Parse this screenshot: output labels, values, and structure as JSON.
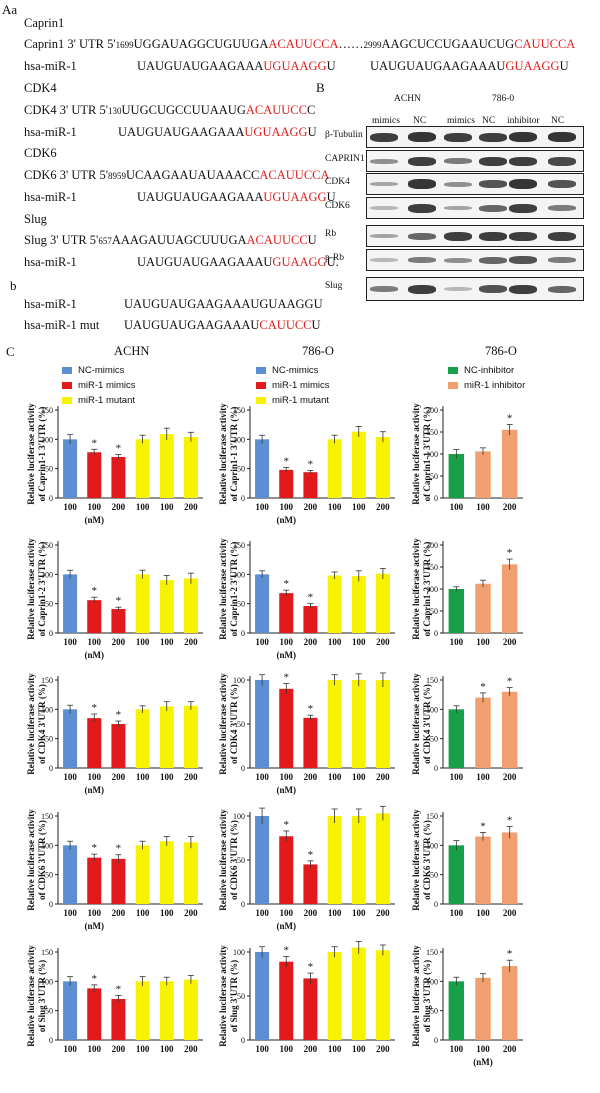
{
  "panel_A": {
    "label": "Aa",
    "caprin1": {
      "header": "Caprin1",
      "utr_prefix": "Caprin1   3' UTR 5'",
      "pos1": "1699",
      "seq1_black": "UGGAUAGGCUGUUGA",
      "seq1_red": "ACAUUCCA",
      "dots": "……",
      "pos2": "2999",
      "seq2_black": "AAGCUCCUGAAUCUG",
      "seq2_red": "CAUUCCA",
      "mir_label": "hsa-miR-1",
      "mir1_black": "UAUGUAUGAAGAAA",
      "mir1_red": "UGUAAGG",
      "mir1_tail": "U",
      "mir2_black": "UAUGUAUGAAGAAAU",
      "mir2_red": "GUAAGG",
      "mir2_tail": "U"
    },
    "cdk4": {
      "header": "CDK4",
      "utr_prefix": "CDK4  3' UTR 5'",
      "pos": "130",
      "seq_black": "UUGCUGCCUUAAUG",
      "seq_red": "ACAUUCC",
      "seq_tail": "C",
      "mir_label": "hsa-miR-1",
      "mir_black": "UAUGUAUGAAGAAA",
      "mir_red": "UGUAAGG",
      "mir_tail": "U"
    },
    "cdk6": {
      "header": "CDK6",
      "utr_prefix": "CDK6 3' UTR 5'",
      "pos": "8959",
      "seq_black": "UCAAGAAUAUAAACC",
      "seq_red": "ACAUUCCA",
      "mir_label": "hsa-miR-1",
      "mir_black": "UAUGUAUGAAGAAA",
      "mir_red": "UGUAAGG",
      "mir_tail": "U"
    },
    "slug": {
      "header": "Slug",
      "utr_prefix": "Slug   3' UTR 5'",
      "pos": "657",
      "seq_black": "AAAGAUUAGCUUUGA",
      "seq_red": "ACAUUCC",
      "seq_tail": "U",
      "mir_label": "hsa-miR-1",
      "mir_black": "UAUGUAUGAAGAAAU",
      "mir_red": "GUAAGG",
      "mir_tail": "U."
    }
  },
  "panel_b": {
    "label": "b",
    "wt_label": "hsa-miR-1",
    "wt_seq": "UAUGUAUGAAGAAAUGUAAGGU",
    "mut_label": "hsa-miR-1 mut",
    "mut_black": "UAUGUAUGAAGAAAU",
    "mut_red": "CAUUCC",
    "mut_tail": "U"
  },
  "panel_B": {
    "label": "B",
    "cell_line_1": "ACHN",
    "cell_line_2": "786-0",
    "lanes": [
      "mimics",
      "NC",
      "mimics",
      "NC",
      "inhibitor",
      "NC"
    ],
    "blots": [
      "β-Tubulin",
      "CAPRIN1",
      "CDK4",
      "CDK6",
      "Rb",
      "p-Rb",
      "Slug"
    ]
  },
  "panel_C": {
    "label": "C",
    "column_titles": [
      "ACHN",
      "786-O",
      "786-O"
    ],
    "legend_mimics": [
      "NC-mimics",
      "miR-1 mimics",
      "miR-1 mutant"
    ],
    "legend_inhibitor": [
      "NC-inhibitor",
      "miR-1 inhibitor"
    ],
    "y_title_top": "Relative luciferase activity",
    "x_unit": "(nM)",
    "colors": {
      "nc": "#5b8fd1",
      "mimic": "#e31a1c",
      "mutant": "#f7f200",
      "nc_inh": "#18a048",
      "inh": "#f0a070"
    }
  },
  "chart_data": [
    {
      "type": "bar",
      "row": 1,
      "col": 1,
      "ylabel": "of Caprin1-1 3'UTR (%)",
      "categories": [
        "100",
        "100",
        "200",
        "100",
        "100",
        "200"
      ],
      "values": [
        100,
        78,
        70,
        100,
        109,
        104
      ],
      "errors": [
        8,
        5,
        4,
        7,
        10,
        8
      ],
      "stars": [
        false,
        true,
        true,
        false,
        false,
        false
      ],
      "colors": [
        "nc",
        "mimic",
        "mimic",
        "mutant",
        "mutant",
        "mutant"
      ],
      "ylim": [
        0,
        150
      ],
      "yticks": [
        0,
        50,
        100,
        150
      ],
      "show_unit": true
    },
    {
      "type": "bar",
      "row": 1,
      "col": 2,
      "ylabel": "of Caprin1-1 3'UTR (%)",
      "categories": [
        "100",
        "100",
        "200",
        "100",
        "100",
        "200"
      ],
      "values": [
        100,
        48,
        44,
        100,
        113,
        104
      ],
      "errors": [
        7,
        4,
        3,
        7,
        9,
        9
      ],
      "stars": [
        false,
        true,
        true,
        false,
        false,
        false
      ],
      "colors": [
        "nc",
        "mimic",
        "mimic",
        "mutant",
        "mutant",
        "mutant"
      ],
      "ylim": [
        0,
        150
      ],
      "yticks": [
        0,
        50,
        100,
        150
      ],
      "show_unit": true
    },
    {
      "type": "bar",
      "row": 1,
      "col": 3,
      "ylabel": "of Caprin1-1 3'UTR (%)",
      "categories": [
        "100",
        "100",
        "200"
      ],
      "values": [
        100,
        106,
        155
      ],
      "errors": [
        10,
        8,
        12
      ],
      "stars": [
        false,
        false,
        true
      ],
      "colors": [
        "nc_inh",
        "inh",
        "inh"
      ],
      "ylim": [
        0,
        200
      ],
      "yticks": [
        0,
        50,
        100,
        150,
        200
      ],
      "show_unit": false
    },
    {
      "type": "bar",
      "row": 2,
      "col": 1,
      "ylabel": "of Caprin1-2 3'UTR (%)",
      "categories": [
        "100",
        "100",
        "200",
        "100",
        "100",
        "200"
      ],
      "values": [
        100,
        56,
        41,
        100,
        90,
        93
      ],
      "errors": [
        7,
        5,
        3,
        7,
        8,
        9
      ],
      "stars": [
        false,
        true,
        true,
        false,
        false,
        false
      ],
      "colors": [
        "nc",
        "mimic",
        "mimic",
        "mutant",
        "mutant",
        "mutant"
      ],
      "ylim": [
        0,
        150
      ],
      "yticks": [
        0,
        50,
        100,
        150
      ],
      "show_unit": true
    },
    {
      "type": "bar",
      "row": 2,
      "col": 2,
      "ylabel": "of Caprin1-2 3'UTR (%)",
      "categories": [
        "100",
        "100",
        "200",
        "100",
        "100",
        "200"
      ],
      "values": [
        100,
        68,
        46,
        98,
        97,
        101
      ],
      "errors": [
        6,
        5,
        4,
        6,
        9,
        9
      ],
      "stars": [
        false,
        true,
        true,
        false,
        false,
        false
      ],
      "colors": [
        "nc",
        "mimic",
        "mimic",
        "mutant",
        "mutant",
        "mutant"
      ],
      "ylim": [
        0,
        150
      ],
      "yticks": [
        0,
        50,
        100,
        150
      ],
      "show_unit": true
    },
    {
      "type": "bar",
      "row": 2,
      "col": 3,
      "ylabel": "of Caprin1-2 3'UTR (%)",
      "categories": [
        "100",
        "100",
        "200"
      ],
      "values": [
        100,
        112,
        156
      ],
      "errors": [
        5,
        8,
        12
      ],
      "stars": [
        false,
        false,
        true
      ],
      "colors": [
        "nc_inh",
        "inh",
        "inh"
      ],
      "ylim": [
        0,
        200
      ],
      "yticks": [
        0,
        50,
        100,
        150,
        200
      ],
      "show_unit": false
    },
    {
      "type": "bar",
      "row": 3,
      "col": 1,
      "ylabel": "of CDK4 3'UTR (%)",
      "categories": [
        "100",
        "100",
        "200",
        "100",
        "100",
        "200"
      ],
      "values": [
        100,
        85,
        75,
        100,
        105,
        106
      ],
      "errors": [
        7,
        7,
        5,
        6,
        8,
        7
      ],
      "stars": [
        false,
        true,
        true,
        false,
        false,
        false
      ],
      "colors": [
        "nc",
        "mimic",
        "mimic",
        "mutant",
        "mutant",
        "mutant"
      ],
      "ylim": [
        0,
        150
      ],
      "yticks": [
        0,
        50,
        100,
        150
      ],
      "show_unit": true
    },
    {
      "type": "bar",
      "row": 3,
      "col": 2,
      "ylabel": "of CDK4 3'UTR (%)",
      "categories": [
        "100",
        "100",
        "200",
        "100",
        "100",
        "200"
      ],
      "values": [
        100,
        90,
        57,
        100,
        100,
        100
      ],
      "errors": [
        6,
        6,
        3,
        6,
        7,
        8
      ],
      "stars": [
        false,
        true,
        true,
        false,
        false,
        false
      ],
      "colors": [
        "nc",
        "mimic",
        "mimic",
        "mutant",
        "mutant",
        "mutant"
      ],
      "ylim": [
        0,
        100
      ],
      "yticks": [
        0,
        50,
        100
      ],
      "show_unit": true
    },
    {
      "type": "bar",
      "row": 3,
      "col": 3,
      "ylabel": "of CDK4 3'UTR (%)",
      "categories": [
        "100",
        "100",
        "200"
      ],
      "values": [
        100,
        120,
        130
      ],
      "errors": [
        6,
        8,
        7
      ],
      "stars": [
        false,
        true,
        true
      ],
      "colors": [
        "nc_inh",
        "inh",
        "inh"
      ],
      "ylim": [
        0,
        150
      ],
      "yticks": [
        0,
        50,
        100,
        150
      ],
      "show_unit": false
    },
    {
      "type": "bar",
      "row": 4,
      "col": 1,
      "ylabel": "of CDK6 3'UTR (%)",
      "categories": [
        "100",
        "100",
        "200",
        "100",
        "100",
        "200"
      ],
      "values": [
        100,
        79,
        77,
        100,
        107,
        105
      ],
      "errors": [
        7,
        6,
        7,
        7,
        8,
        10
      ],
      "stars": [
        false,
        true,
        true,
        false,
        false,
        false
      ],
      "colors": [
        "nc",
        "mimic",
        "mimic",
        "mutant",
        "mutant",
        "mutant"
      ],
      "ylim": [
        0,
        150
      ],
      "yticks": [
        0,
        50,
        100,
        150
      ],
      "show_unit": true
    },
    {
      "type": "bar",
      "row": 4,
      "col": 2,
      "ylabel": "of CDK6 3'UTR (%)",
      "categories": [
        "100",
        "100",
        "200",
        "100",
        "100",
        "200"
      ],
      "values": [
        100,
        77,
        45,
        100,
        100,
        103
      ],
      "errors": [
        9,
        6,
        4,
        8,
        8,
        8
      ],
      "stars": [
        false,
        true,
        true,
        false,
        false,
        false
      ],
      "colors": [
        "nc",
        "mimic",
        "mimic",
        "mutant",
        "mutant",
        "mutant"
      ],
      "ylim": [
        0,
        100
      ],
      "yticks": [
        0,
        50,
        100
      ],
      "show_unit": true
    },
    {
      "type": "bar",
      "row": 4,
      "col": 3,
      "ylabel": "of CDK6 3'UTR (%)",
      "categories": [
        "100",
        "100",
        "200"
      ],
      "values": [
        100,
        115,
        122
      ],
      "errors": [
        8,
        7,
        10
      ],
      "stars": [
        false,
        true,
        true
      ],
      "colors": [
        "nc_inh",
        "inh",
        "inh"
      ],
      "ylim": [
        0,
        150
      ],
      "yticks": [
        0,
        50,
        100,
        150
      ],
      "show_unit": false
    },
    {
      "type": "bar",
      "row": 5,
      "col": 1,
      "ylabel": "of Slug 3'UTR (%)",
      "categories": [
        "100",
        "100",
        "200",
        "100",
        "100",
        "200"
      ],
      "values": [
        100,
        88,
        70,
        100,
        100,
        103
      ],
      "errors": [
        8,
        6,
        6,
        8,
        7,
        7
      ],
      "stars": [
        false,
        true,
        true,
        false,
        false,
        false
      ],
      "colors": [
        "nc",
        "mimic",
        "mimic",
        "mutant",
        "mutant",
        "mutant"
      ],
      "ylim": [
        0,
        150
      ],
      "yticks": [
        0,
        50,
        100,
        150
      ],
      "show_unit": false
    },
    {
      "type": "bar",
      "row": 5,
      "col": 2,
      "ylabel": "of Slug 3'UTR (%)",
      "categories": [
        "100",
        "100",
        "200",
        "100",
        "100",
        "200"
      ],
      "values": [
        100,
        89,
        70,
        100,
        105,
        102
      ],
      "errors": [
        6,
        6,
        6,
        6,
        7,
        6
      ],
      "stars": [
        false,
        true,
        true,
        false,
        false,
        false
      ],
      "colors": [
        "nc",
        "mimic",
        "mimic",
        "mutant",
        "mutant",
        "mutant"
      ],
      "ylim": [
        0,
        100
      ],
      "yticks": [
        0,
        50,
        100
      ],
      "show_unit": false
    },
    {
      "type": "bar",
      "row": 5,
      "col": 3,
      "ylabel": "of Slug 3'UTR (%)",
      "categories": [
        "100",
        "100",
        "200"
      ],
      "values": [
        100,
        106,
        126
      ],
      "errors": [
        7,
        7,
        10
      ],
      "stars": [
        false,
        false,
        true
      ],
      "colors": [
        "nc_inh",
        "inh",
        "inh"
      ],
      "ylim": [
        0,
        150
      ],
      "yticks": [
        0,
        50,
        100,
        150
      ],
      "show_unit": true
    }
  ]
}
